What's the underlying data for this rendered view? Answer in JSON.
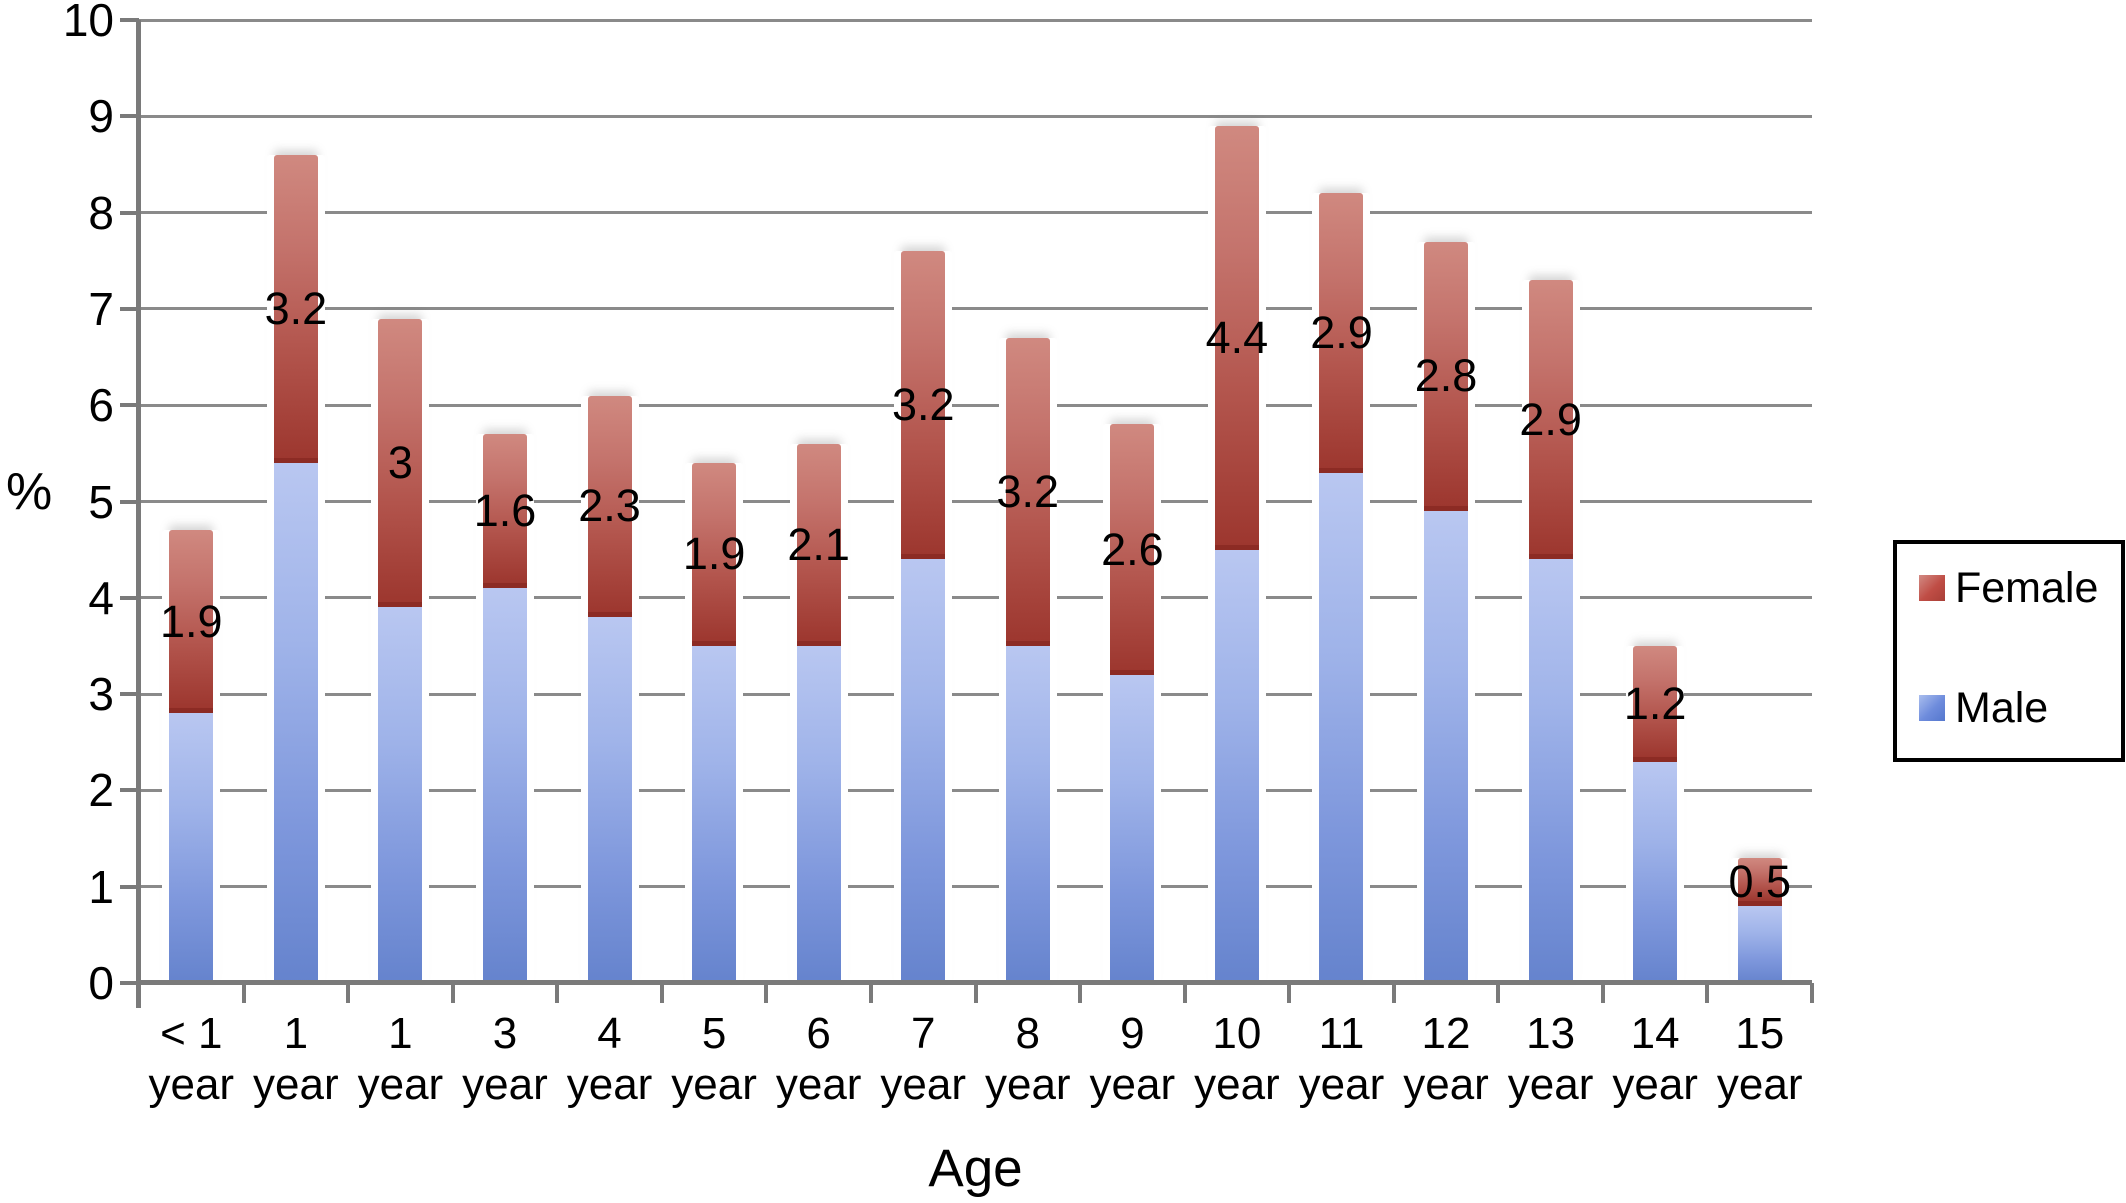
{
  "chart_data": {
    "type": "bar",
    "stacked": true,
    "title": "",
    "xlabel": "Age",
    "ylabel": "%",
    "ylim": [
      0,
      10
    ],
    "y_ticks": [
      0,
      1,
      2,
      3,
      4,
      5,
      6,
      7,
      8,
      9,
      10
    ],
    "grid": true,
    "legend_position": "right",
    "legend": [
      "Female",
      "Male"
    ],
    "categories": [
      "< 1 year",
      "1 year",
      "1 year",
      "3 year",
      "4 year",
      "5 year",
      "6 year",
      "7 year",
      "8 year",
      "9 year",
      "10 year",
      "11 year",
      "12 year",
      "13 year",
      "14 year",
      "15 year"
    ],
    "series": [
      {
        "name": "Male",
        "stack_order": "bottom",
        "values": [
          2.8,
          5.4,
          3.9,
          4.1,
          3.8,
          3.5,
          3.5,
          4.4,
          3.5,
          3.2,
          4.5,
          5.3,
          4.9,
          4.4,
          2.3,
          0.8
        ]
      },
      {
        "name": "Female",
        "stack_order": "top",
        "values": [
          1.9,
          3.2,
          3.0,
          1.6,
          2.3,
          1.9,
          2.1,
          3.2,
          3.2,
          2.6,
          4.4,
          2.9,
          2.8,
          2.9,
          1.2,
          0.5
        ],
        "data_labels": [
          "1.9",
          "3.2",
          "3",
          "1.6",
          "2.3",
          "1.9",
          "2.1",
          "3.2",
          "3.2",
          "2.6",
          "4.4",
          "2.9",
          "2.8",
          "2.9",
          "1.2",
          "0.5"
        ]
      }
    ],
    "totals": [
      4.7,
      8.6,
      6.9,
      5.7,
      6.1,
      5.4,
      5.6,
      7.6,
      6.7,
      5.8,
      8.9,
      8.2,
      7.7,
      7.3,
      3.5,
      1.3
    ]
  },
  "colors": {
    "background": "#ffffff",
    "text": "#000000",
    "gridline": "#8a8a8a",
    "axis": "#7a7a7a",
    "legend_border": "#000000",
    "male_top": "#b9c7f1",
    "male_bottom": "#6583cd",
    "male_mid": "#6d8bdc",
    "female_top": "#d08980",
    "female_bottom": "#9d372f",
    "female_mid": "#bf4d45",
    "female_divider": "#8c2b24"
  }
}
